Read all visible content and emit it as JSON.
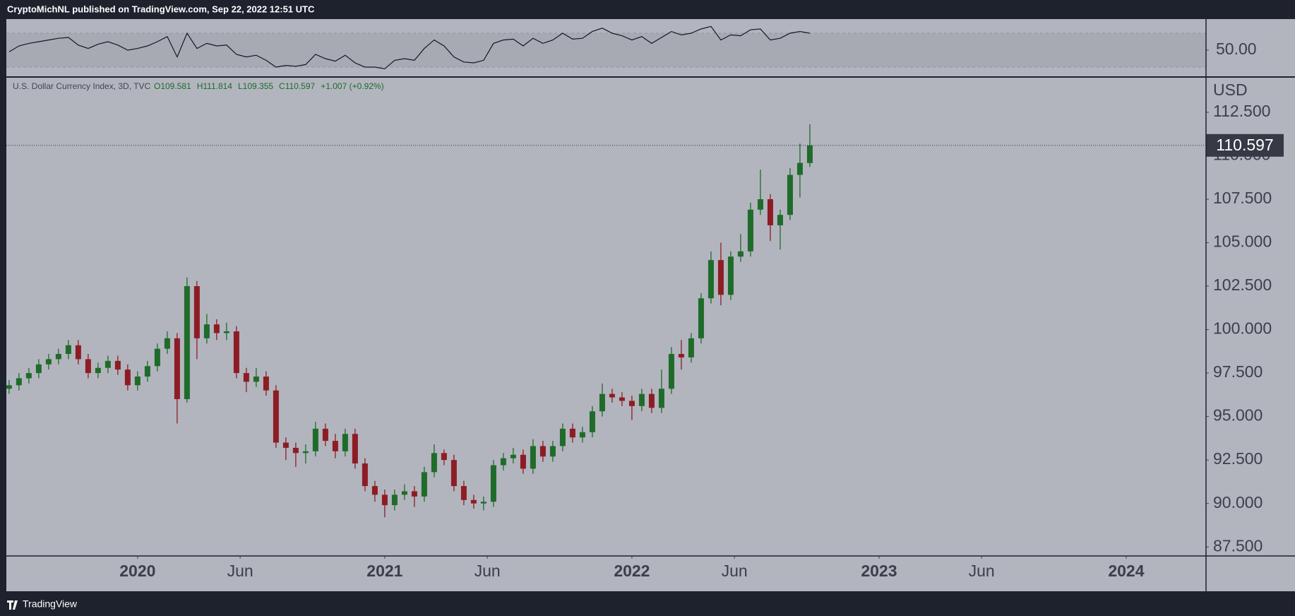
{
  "header": {
    "publisher": "CryptoMichNL published on TradingView.com, Sep 22, 2022 12:51 UTC"
  },
  "footer": {
    "brand": "TradingView"
  },
  "chart_data": [
    {
      "type": "line",
      "color": "#131722",
      "values": [
        48,
        55,
        58,
        60,
        62,
        64,
        65,
        56,
        52,
        57,
        60,
        56,
        50,
        52,
        55,
        60,
        66,
        42,
        70,
        52,
        58,
        55,
        56,
        45,
        42,
        44,
        38,
        30,
        32,
        31,
        33,
        45,
        40,
        37,
        44,
        35,
        30,
        30,
        28,
        38,
        40,
        38,
        52,
        62,
        55,
        42,
        36,
        35,
        38,
        58,
        62,
        63,
        55,
        64,
        58,
        62,
        70,
        63,
        64,
        72,
        76,
        70,
        67,
        62,
        66,
        58,
        65,
        72,
        68,
        70,
        75,
        78,
        62,
        68,
        67,
        74,
        75,
        62,
        64,
        70,
        72,
        70
      ],
      "ylim": [
        18.3,
        86.7
      ],
      "yticks": [
        {
          "value": 50,
          "label": "50.00"
        }
      ],
      "bands": [
        30,
        70
      ]
    },
    {
      "type": "candlestick",
      "title": "U.S. Dollar Currency Index, 3D, TVC",
      "ohlc_labels": [
        "O109.581",
        "H111.814",
        "L109.355",
        "C110.597"
      ],
      "change_label": "+1.007 (+0.92%)",
      "y_label": "USD",
      "up_color": "#1f6b2a",
      "down_color": "#8e1c24",
      "x": [
        2019.48,
        2019.52,
        2019.56,
        2019.6,
        2019.64,
        2019.68,
        2019.72,
        2019.76,
        2019.8,
        2019.84,
        2019.88,
        2019.92,
        2019.96,
        2020,
        2020.04,
        2020.08,
        2020.12,
        2020.16,
        2020.2,
        2020.24,
        2020.28,
        2020.32,
        2020.36,
        2020.4,
        2020.44,
        2020.48,
        2020.52,
        2020.56,
        2020.6,
        2020.64,
        2020.68,
        2020.72,
        2020.76,
        2020.8,
        2020.84,
        2020.88,
        2020.92,
        2020.96,
        2021,
        2021.04,
        2021.08,
        2021.12,
        2021.16,
        2021.2,
        2021.24,
        2021.28,
        2021.32,
        2021.36,
        2021.4,
        2021.44,
        2021.48,
        2021.52,
        2021.56,
        2021.6,
        2021.64,
        2021.68,
        2021.72,
        2021.76,
        2021.8,
        2021.84,
        2021.88,
        2021.92,
        2021.96,
        2022,
        2022.04,
        2022.08,
        2022.12,
        2022.16,
        2022.2,
        2022.24,
        2022.28,
        2022.32,
        2022.36,
        2022.4,
        2022.44,
        2022.48,
        2022.52,
        2022.56,
        2022.6,
        2022.64,
        2022.68,
        2022.72
      ],
      "open": [
        96.6,
        96.8,
        97.2,
        97.5,
        98.0,
        98.3,
        98.6,
        99.1,
        98.3,
        97.5,
        97.8,
        98.2,
        97.7,
        96.8,
        97.3,
        97.9,
        98.9,
        99.5,
        96.0,
        102.5,
        99.5,
        100.3,
        99.8,
        99.9,
        97.5,
        97.0,
        97.3,
        96.5,
        93.5,
        93.2,
        92.9,
        93.0,
        94.3,
        93.6,
        93.0,
        94.0,
        92.3,
        91.0,
        90.5,
        89.9,
        90.5,
        90.7,
        90.4,
        91.8,
        92.9,
        92.5,
        91.0,
        90.2,
        90.0,
        90.1,
        92.2,
        92.6,
        92.8,
        92.0,
        93.3,
        92.7,
        93.3,
        94.3,
        93.8,
        94.1,
        95.3,
        96.3,
        96.1,
        95.9,
        95.6,
        96.3,
        95.5,
        96.6,
        98.6,
        98.4,
        99.5,
        101.8,
        104.0,
        102.0,
        104.2,
        104.5,
        106.9,
        107.5,
        106.0,
        106.6,
        108.9,
        109.581
      ],
      "high": [
        97.1,
        97.5,
        97.8,
        98.3,
        98.6,
        98.9,
        99.4,
        99.4,
        98.6,
        98.1,
        98.5,
        98.5,
        98.0,
        97.6,
        98.2,
        99.2,
        99.9,
        99.8,
        103.0,
        102.8,
        100.9,
        100.6,
        100.4,
        100.2,
        97.8,
        97.8,
        97.6,
        96.8,
        93.8,
        93.5,
        93.4,
        94.7,
        94.6,
        94.0,
        94.3,
        94.3,
        92.6,
        91.3,
        90.8,
        90.8,
        91.1,
        91.0,
        92.1,
        93.4,
        93.1,
        92.8,
        91.3,
        90.5,
        90.4,
        92.5,
        92.9,
        93.2,
        93.1,
        93.7,
        93.6,
        93.6,
        94.6,
        94.6,
        94.4,
        95.6,
        96.9,
        96.6,
        96.4,
        96.2,
        96.6,
        96.6,
        97.7,
        99.0,
        99.4,
        99.8,
        102.1,
        104.5,
        105.0,
        104.5,
        105.5,
        107.3,
        109.2,
        107.8,
        106.9,
        109.3,
        110.7,
        111.814
      ],
      "low": [
        96.3,
        96.5,
        96.9,
        97.2,
        97.7,
        98.0,
        98.3,
        98.0,
        97.2,
        97.2,
        97.5,
        97.4,
        96.5,
        96.5,
        97.0,
        97.6,
        98.6,
        94.6,
        95.8,
        98.3,
        99.2,
        99.4,
        99.4,
        97.2,
        96.4,
        96.7,
        96.2,
        93.2,
        92.5,
        92.1,
        92.3,
        92.7,
        93.3,
        92.6,
        92.7,
        92.0,
        90.7,
        90.1,
        89.2,
        89.6,
        90.2,
        89.8,
        90.1,
        91.5,
        92.2,
        90.7,
        89.9,
        89.7,
        89.6,
        89.8,
        91.9,
        92.3,
        91.7,
        91.7,
        92.4,
        92.4,
        93.0,
        93.5,
        93.5,
        93.8,
        95.0,
        95.8,
        95.6,
        94.8,
        95.3,
        95.2,
        95.2,
        96.3,
        97.7,
        98.1,
        99.2,
        101.5,
        101.4,
        101.7,
        103.9,
        104.2,
        106.6,
        105.1,
        104.6,
        106.3,
        107.6,
        109.355
      ],
      "close": [
        96.8,
        97.2,
        97.5,
        98.0,
        98.3,
        98.6,
        99.1,
        98.3,
        97.5,
        97.8,
        98.2,
        97.7,
        96.8,
        97.3,
        97.9,
        98.9,
        99.5,
        96.0,
        102.5,
        99.5,
        100.3,
        99.8,
        99.9,
        97.5,
        97.0,
        97.3,
        96.5,
        93.5,
        93.2,
        92.9,
        93.0,
        94.3,
        93.6,
        93.0,
        94.0,
        92.3,
        91.0,
        90.5,
        89.9,
        90.5,
        90.7,
        90.4,
        91.8,
        92.9,
        92.5,
        91.0,
        90.2,
        90.0,
        90.1,
        92.2,
        92.6,
        92.8,
        92.0,
        93.3,
        92.7,
        93.3,
        94.3,
        93.8,
        94.1,
        95.3,
        96.3,
        96.1,
        95.9,
        95.6,
        96.3,
        95.5,
        96.6,
        98.6,
        98.4,
        99.5,
        101.8,
        104.0,
        102.0,
        104.2,
        104.5,
        106.9,
        107.5,
        106.0,
        106.6,
        108.9,
        109.59,
        110.597
      ],
      "xlim": [
        2019.469,
        2024.323
      ],
      "xticks": [
        2020,
        {
          "value": 2020.415,
          "label": "Jun"
        },
        2021,
        {
          "value": 2021.415,
          "label": "Jun"
        },
        2022,
        {
          "value": 2022.415,
          "label": "Jun"
        },
        2023,
        {
          "value": 2023.415,
          "label": "Jun"
        },
        2024
      ],
      "ylim": [
        86.98,
        114.53
      ],
      "yticks": [
        {
          "value": 87.5,
          "label": "87.500"
        },
        {
          "value": 90,
          "label": "90.000"
        },
        {
          "value": 92.5,
          "label": "92.500"
        },
        {
          "value": 95,
          "label": "95.000"
        },
        {
          "value": 97.5,
          "label": "97.500"
        },
        {
          "value": 100,
          "label": "100.000"
        },
        {
          "value": 102.5,
          "label": "102.500"
        },
        {
          "value": 105,
          "label": "105.000"
        },
        {
          "value": 107.5,
          "label": "107.500"
        },
        {
          "value": 110,
          "label": "110.000"
        },
        {
          "value": 112.5,
          "label": "112.500"
        }
      ]
    }
  ]
}
